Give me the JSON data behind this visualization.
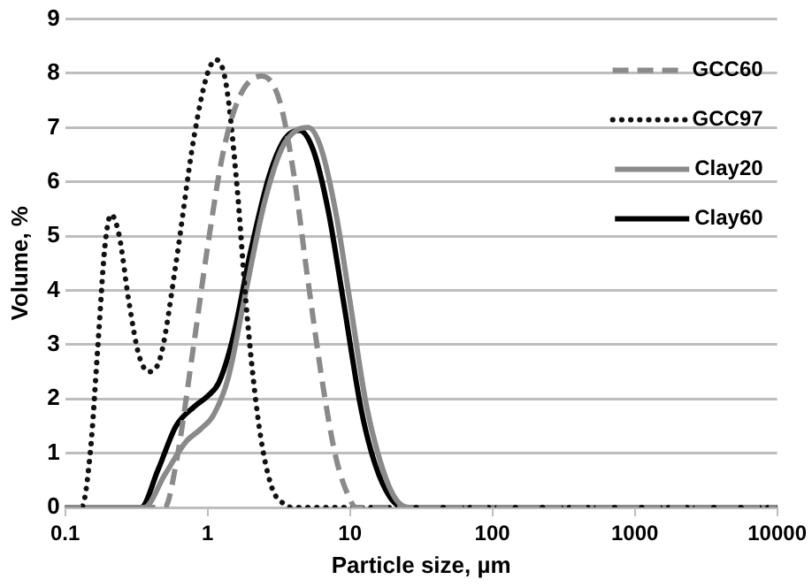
{
  "chart_data": {
    "type": "line",
    "xlabel": "Particle size, µm",
    "ylabel": "Volume, %",
    "log": "x",
    "xlim": [
      0.1,
      10000
    ],
    "xticks": [
      0.1,
      1,
      10,
      100,
      1000,
      10000
    ],
    "ylim": [
      0,
      9
    ],
    "yticks": [
      0,
      1,
      2,
      3,
      4,
      5,
      6,
      7,
      8,
      9
    ],
    "grid": "y",
    "legend": "top right",
    "marker": "none",
    "series": [
      {
        "name": "GCC60",
        "color": "#8a8a8a",
        "line_style": "dashed",
        "x": [
          0.1,
          0.5,
          0.6,
          0.8,
          1.0,
          1.3,
          1.7,
          2.4,
          3.2,
          4,
          5,
          6.5,
          8,
          10,
          11,
          10000
        ],
        "values": [
          0,
          0,
          0.8,
          3,
          4.8,
          6.6,
          7.6,
          7.95,
          7.5,
          6.2,
          4.3,
          2.2,
          0.9,
          0.15,
          0,
          0
        ]
      },
      {
        "name": "GCC97",
        "color": "#111111",
        "line_style": "dotted",
        "x": [
          0.1,
          0.13,
          0.15,
          0.17,
          0.19,
          0.21,
          0.24,
          0.28,
          0.33,
          0.39,
          0.47,
          0.6,
          0.8,
          1.0,
          1.15,
          1.35,
          1.6,
          1.9,
          2.3,
          2.8,
          3.5,
          4,
          10000
        ],
        "values": [
          0,
          0,
          1,
          3,
          4.8,
          5.4,
          5.0,
          3.8,
          2.8,
          2.5,
          2.8,
          4.5,
          6.8,
          8.0,
          8.25,
          7.8,
          6,
          3.5,
          1.5,
          0.4,
          0.05,
          0,
          0
        ]
      },
      {
        "name": "Clay20",
        "color": "#8a8a8a",
        "line_style": "solid",
        "x": [
          0.1,
          0.36,
          0.5,
          0.7,
          0.9,
          1.1,
          1.4,
          1.8,
          2.5,
          3.3,
          4.2,
          5.1,
          6.3,
          8,
          10,
          13,
          17,
          21,
          26,
          10000
        ],
        "values": [
          0,
          0,
          0.6,
          1.2,
          1.45,
          1.7,
          2.4,
          3.8,
          5.6,
          6.6,
          6.95,
          7.0,
          6.6,
          5.4,
          3.8,
          1.9,
          0.7,
          0.15,
          0,
          0
        ]
      },
      {
        "name": "Clay60",
        "color": "#000000",
        "line_style": "solid",
        "x": [
          0.1,
          0.34,
          0.45,
          0.6,
          0.8,
          1.0,
          1.2,
          1.5,
          2,
          2.7,
          3.5,
          4.4,
          5.5,
          7,
          9,
          12,
          15,
          19,
          24,
          10000
        ],
        "values": [
          0,
          0,
          0.7,
          1.5,
          1.85,
          2.05,
          2.3,
          3.1,
          4.7,
          6.1,
          6.8,
          6.95,
          6.6,
          5.5,
          3.8,
          1.8,
          0.8,
          0.2,
          0,
          0
        ]
      }
    ]
  }
}
